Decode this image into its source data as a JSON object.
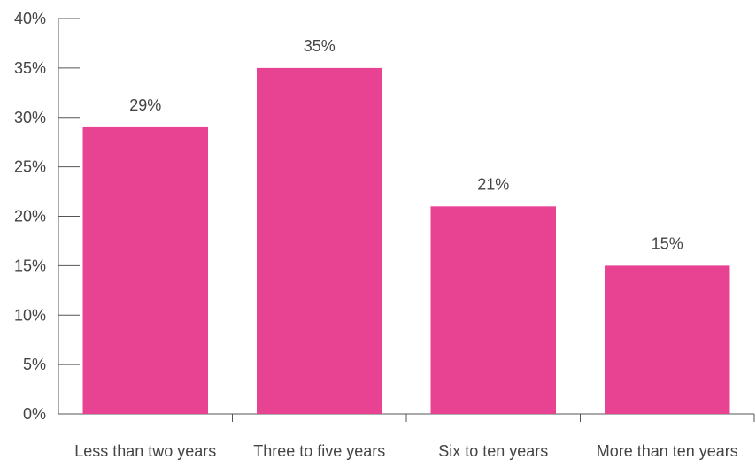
{
  "chart_data": {
    "type": "bar",
    "title": "",
    "xlabel": "",
    "ylabel": "",
    "categories": [
      "Less than two years",
      "Three to five years",
      "Six to ten years",
      "More than ten years"
    ],
    "values": [
      29,
      35,
      21,
      15
    ],
    "data_labels": [
      "29%",
      "35%",
      "21%",
      "15%"
    ],
    "ylim": [
      0,
      40
    ],
    "yticks": [
      0,
      5,
      10,
      15,
      20,
      25,
      30,
      35,
      40
    ],
    "ytick_labels": [
      "0%",
      "5%",
      "10%",
      "15%",
      "20%",
      "25%",
      "30%",
      "35%",
      "40%"
    ],
    "grid": false,
    "legend": "none",
    "bar_color": "#E84393"
  }
}
